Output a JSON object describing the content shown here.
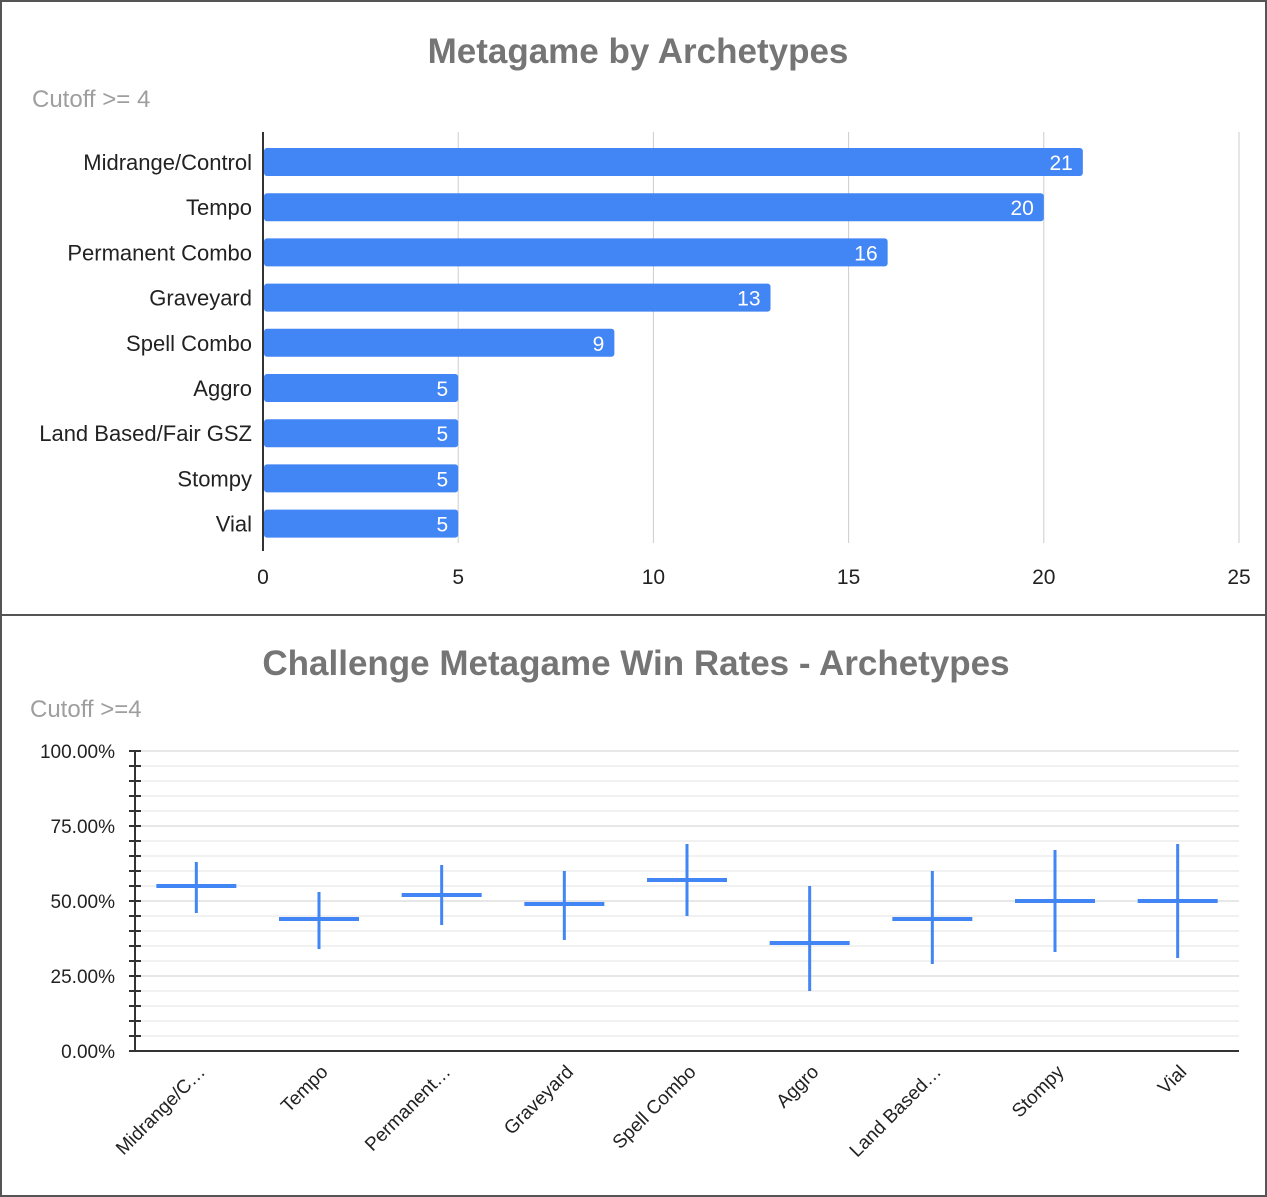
{
  "chart_data": [
    {
      "type": "bar",
      "orientation": "horizontal",
      "title": "Metagame by Archetypes",
      "subtitle": "Cutoff >= 4",
      "categories": [
        "Midrange/Control",
        "Tempo",
        "Permanent Combo",
        "Graveyard",
        "Spell Combo",
        "Aggro",
        "Land Based/Fair GSZ",
        "Stompy",
        "Vial"
      ],
      "values": [
        21,
        20,
        16,
        13,
        9,
        5,
        5,
        5,
        5
      ],
      "xlim": [
        0,
        25
      ],
      "xticks": [
        0,
        5,
        10,
        15,
        20,
        25
      ],
      "grid": true,
      "data_labels": true,
      "color": "#4285f4"
    },
    {
      "type": "candlestick",
      "title": "Challenge Metagame Win Rates - Archetypes",
      "subtitle": "Cutoff >=4",
      "categories": [
        "Midrange/C…",
        "Tempo",
        "Permanent…",
        "Graveyard",
        "Spell Combo",
        "Aggro",
        "Land Based…",
        "Stompy",
        "Vial"
      ],
      "series": [
        {
          "low": [
            0.46,
            0.34,
            0.42,
            0.37,
            0.45,
            0.2,
            0.29,
            0.33,
            0.31
          ],
          "mid": [
            0.55,
            0.44,
            0.52,
            0.49,
            0.57,
            0.36,
            0.44,
            0.5,
            0.5
          ],
          "high": [
            0.63,
            0.53,
            0.62,
            0.6,
            0.69,
            0.55,
            0.6,
            0.67,
            0.69
          ]
        }
      ],
      "ylim": [
        0,
        1
      ],
      "yticks": [
        "0.00%",
        "25.00%",
        "50.00%",
        "75.00%",
        "100.00%"
      ],
      "grid": true,
      "color": "#4285f4"
    }
  ]
}
